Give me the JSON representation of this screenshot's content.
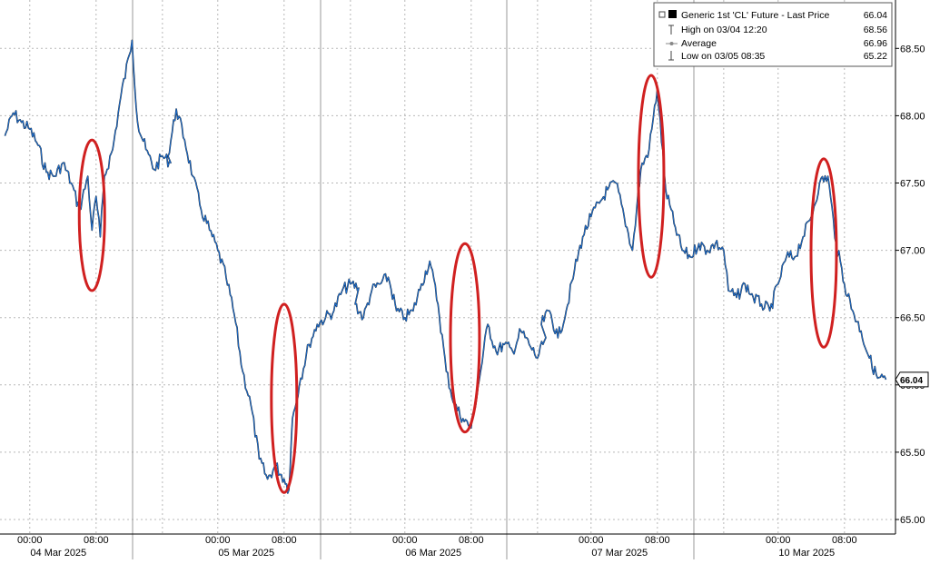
{
  "chart_data": {
    "type": "line",
    "title": "",
    "xlabel": "",
    "ylabel": "",
    "ylim": [
      65.0,
      68.7
    ],
    "yticks": [
      {
        "value": 68.5,
        "label": "68.50"
      },
      {
        "value": 68.0,
        "label": "68.00"
      },
      {
        "value": 67.5,
        "label": "67.50"
      },
      {
        "value": 67.0,
        "label": "67.00"
      },
      {
        "value": 66.5,
        "label": "66.50"
      },
      {
        "value": 66.0,
        "label": "66.00"
      },
      {
        "value": 65.5,
        "label": "65.50"
      },
      {
        "value": 65.0,
        "label": "65.00"
      }
    ],
    "grid": true,
    "legend_position": "top-right",
    "days": [
      {
        "date_label": "04 Mar 2025",
        "time_labels": [
          "00:00",
          "08:00"
        ]
      },
      {
        "date_label": "05 Mar 2025",
        "time_labels": [
          "00:00",
          "08:00"
        ]
      },
      {
        "date_label": "06 Mar 2025",
        "time_labels": [
          "00:00",
          "08:00"
        ]
      },
      {
        "date_label": "07 Mar 2025",
        "time_labels": [
          "00:00",
          "08:00"
        ]
      },
      {
        "date_label": "10 Mar 2025",
        "time_labels": [
          "00:00",
          "08:00"
        ]
      }
    ],
    "legend": [
      {
        "label": "Generic 1st 'CL' Future - Last Price",
        "value": "66.04"
      },
      {
        "label": "High on 03/04 12:20",
        "value": "68.56"
      },
      {
        "label": "Average",
        "value": "66.96"
      },
      {
        "label": "Low on 03/05 08:35",
        "value": "65.22"
      }
    ],
    "last_price_label": "66.04",
    "series": [
      {
        "x": [
          "03/03 21:00",
          "03/03 22:00",
          "03/03 23:00",
          "03/04 00:00",
          "03/04 01:00",
          "03/04 02:00",
          "03/04 03:00",
          "03/04 04:00",
          "03/04 05:00",
          "03/04 06:00",
          "03/04 07:00",
          "03/04 07:30",
          "03/04 08:00",
          "03/04 08:30",
          "03/04 09:00",
          "03/04 10:00",
          "03/04 11:00",
          "03/04 12:00",
          "03/04 12:20",
          "03/04 13:00",
          "03/04 14:00",
          "03/04 15:00",
          "03/04 16:00",
          "03/04 17:00",
          "03/04 18:00",
          "03/04 19:00",
          "03/04 20:00",
          "03/04 21:00",
          "03/04 22:00",
          "03/04 23:00",
          "03/05 00:00",
          "03/05 01:00",
          "03/05 02:00",
          "03/05 03:00",
          "03/05 04:00",
          "03/05 05:00",
          "03/05 06:00",
          "03/05 07:00",
          "03/05 08:00",
          "03/05 08:35",
          "03/05 09:00",
          "03/05 10:00",
          "03/05 11:00",
          "03/05 12:00",
          "03/05 13:00",
          "03/05 14:00",
          "03/05 15:00",
          "03/05 16:00",
          "03/05 17:00",
          "03/05 18:00",
          "03/05 19:00",
          "03/05 20:00",
          "03/05 21:00",
          "03/05 22:00",
          "03/05 23:00",
          "03/06 00:00",
          "03/06 01:00",
          "03/06 02:00",
          "03/06 03:00",
          "03/06 04:00",
          "03/06 05:00",
          "03/06 06:00",
          "03/06 07:00",
          "03/06 08:00",
          "03/06 09:00",
          "03/06 10:00",
          "03/06 11:00",
          "03/06 12:00",
          "03/06 13:00",
          "03/06 14:00",
          "03/06 15:00",
          "03/06 16:00",
          "03/06 17:00",
          "03/06 18:00",
          "03/06 19:00",
          "03/06 20:00",
          "03/06 21:00",
          "03/06 22:00",
          "03/06 23:00",
          "03/07 00:00",
          "03/07 01:00",
          "03/07 02:00",
          "03/07 03:00",
          "03/07 04:00",
          "03/07 05:00",
          "03/07 06:00",
          "03/07 07:00",
          "03/07 08:00",
          "03/07 09:00",
          "03/07 10:00",
          "03/07 11:00",
          "03/07 12:00",
          "03/07 13:00",
          "03/07 14:00",
          "03/07 15:00",
          "03/07 16:00",
          "03/09 18:00",
          "03/09 19:00",
          "03/09 20:00",
          "03/09 21:00",
          "03/09 22:00",
          "03/09 23:00",
          "03/10 00:00",
          "03/10 01:00",
          "03/10 02:00",
          "03/10 03:00",
          "03/10 04:00",
          "03/10 05:00",
          "03/10 06:00",
          "03/10 07:00",
          "03/10 08:00",
          "03/10 09:00",
          "03/10 10:00",
          "03/10 11:00",
          "03/10 12:00",
          "03/10 13:00"
        ],
        "values": [
          67.85,
          68.02,
          67.95,
          67.9,
          67.78,
          67.58,
          67.55,
          67.65,
          67.5,
          67.3,
          67.55,
          67.15,
          67.4,
          67.1,
          67.55,
          67.75,
          68.15,
          68.45,
          68.56,
          67.95,
          67.75,
          67.6,
          67.7,
          67.65,
          67.7,
          68.05,
          67.82,
          67.55,
          67.3,
          67.15,
          67.0,
          66.8,
          66.52,
          66.1,
          65.85,
          65.45,
          65.3,
          65.4,
          65.3,
          65.22,
          65.75,
          66.05,
          66.3,
          66.45,
          66.5,
          66.55,
          66.7,
          66.75,
          66.72,
          66.6,
          66.5,
          66.7,
          66.75,
          66.8,
          66.55,
          66.5,
          66.55,
          66.75,
          66.92,
          66.6,
          66.1,
          65.85,
          65.75,
          65.68,
          66.05,
          66.45,
          66.25,
          66.3,
          66.25,
          66.4,
          66.3,
          66.2,
          66.35,
          66.45,
          66.55,
          66.35,
          66.55,
          66.85,
          67.1,
          67.25,
          67.35,
          67.45,
          67.5,
          67.25,
          67.0,
          67.6,
          67.75,
          68.2,
          67.45,
          67.2,
          67.0,
          66.95,
          67.05,
          67.0,
          67.05,
          67.0,
          66.7,
          66.65,
          66.75,
          66.65,
          66.6,
          66.55,
          66.75,
          66.95,
          66.95,
          67.1,
          67.25,
          67.5,
          67.55,
          67.05,
          66.75,
          66.55,
          66.4,
          66.2,
          66.05,
          66.04
        ]
      }
    ],
    "highlights": [
      {
        "from": "03/04 06:30",
        "to": "03/04 08:30",
        "low": 66.7,
        "high": 67.82
      },
      {
        "from": "03/05 06:30",
        "to": "03/05 09:30",
        "low": 65.2,
        "high": 66.6
      },
      {
        "from": "03/06 05:30",
        "to": "03/06 09:00",
        "low": 65.65,
        "high": 67.05
      },
      {
        "from": "03/07 06:00",
        "to": "03/07 08:30",
        "low": 66.8,
        "high": 68.3
      },
      {
        "from": "03/10 04:00",
        "to": "03/10 07:00",
        "low": 66.28,
        "high": 67.68
      }
    ],
    "colors": {
      "line": "#1e6fd0",
      "line_dark": "#101010",
      "highlight": "#d02020",
      "grid": "#b8b8b8",
      "axis_text": "#000000"
    }
  }
}
